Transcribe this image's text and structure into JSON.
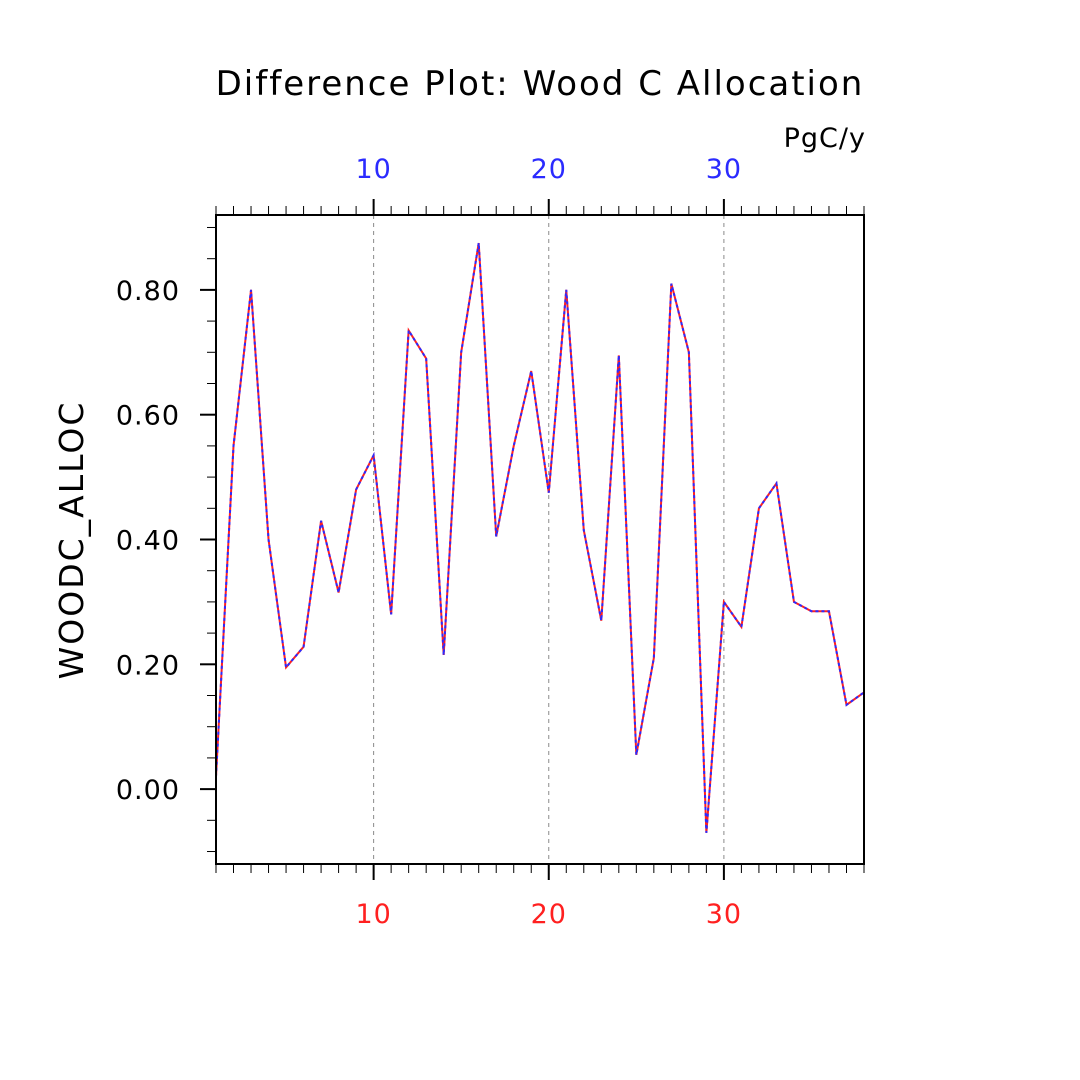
{
  "chart_data": {
    "type": "line",
    "title": "Difference Plot: Wood C Allocation",
    "units": "PgC/y",
    "ylabel": "WOODC_ALLOC",
    "xlim": [
      1,
      38
    ],
    "ylim": [
      -0.12,
      0.92
    ],
    "x_major_ticks": [
      10,
      20,
      30
    ],
    "x_minor_step": 1,
    "y_major_ticks": [
      0.0,
      0.2,
      0.4,
      0.6,
      0.8
    ],
    "y_tick_labels": [
      "0.00",
      "0.20",
      "0.40",
      "0.60",
      "0.80"
    ],
    "y_minor_step": 0.05,
    "top_axis_tick_color": "#2b2bff",
    "bottom_axis_tick_color": "#ff2020",
    "grid": "vertical dashed at major x ticks",
    "legend": "none",
    "series": [
      {
        "color": "#ff2020",
        "style": "solid",
        "x": [
          1,
          2,
          3,
          4,
          5,
          6,
          7,
          8,
          9,
          10,
          11,
          12,
          13,
          14,
          15,
          16,
          17,
          18,
          19,
          20,
          21,
          22,
          23,
          24,
          25,
          26,
          27,
          28,
          29,
          30,
          31,
          32,
          33,
          34,
          35,
          36,
          37,
          38
        ],
        "values": [
          0.02,
          0.55,
          0.8,
          0.4,
          0.195,
          0.228,
          0.43,
          0.315,
          0.48,
          0.535,
          0.28,
          0.735,
          0.69,
          0.215,
          0.7,
          0.875,
          0.405,
          0.55,
          0.67,
          0.475,
          0.8,
          0.415,
          0.27,
          0.695,
          0.055,
          0.21,
          0.81,
          0.7,
          -0.07,
          0.3,
          0.26,
          0.45,
          0.49,
          0.3,
          0.285,
          0.285,
          0.135,
          0.155
        ]
      },
      {
        "color": "#2b2bff",
        "style": "dashed",
        "x": [
          1,
          2,
          3,
          4,
          5,
          6,
          7,
          8,
          9,
          10,
          11,
          12,
          13,
          14,
          15,
          16,
          17,
          18,
          19,
          20,
          21,
          22,
          23,
          24,
          25,
          26,
          27,
          28,
          29,
          30,
          31,
          32,
          33,
          34,
          35,
          36,
          37,
          38
        ],
        "values": [
          0.02,
          0.55,
          0.8,
          0.4,
          0.195,
          0.228,
          0.43,
          0.315,
          0.48,
          0.535,
          0.28,
          0.735,
          0.69,
          0.215,
          0.7,
          0.875,
          0.405,
          0.55,
          0.67,
          0.475,
          0.8,
          0.415,
          0.27,
          0.695,
          0.055,
          0.21,
          0.81,
          0.7,
          -0.07,
          0.3,
          0.26,
          0.45,
          0.49,
          0.3,
          0.285,
          0.285,
          0.135,
          0.155
        ]
      }
    ]
  }
}
